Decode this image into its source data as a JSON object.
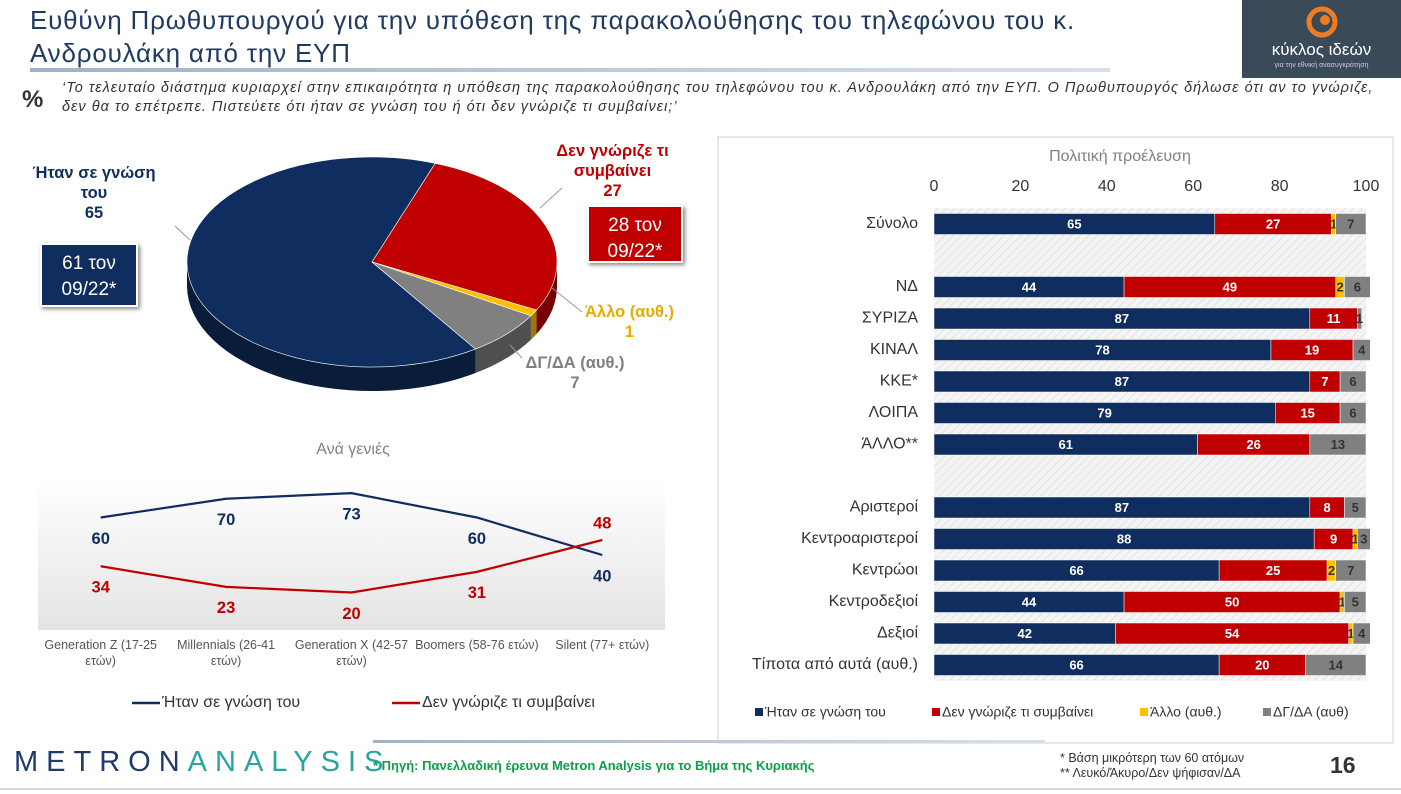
{
  "header": {
    "title": "Ευθύνη Πρωθυπουργού για την υπόθεση της παρακολούθησης του τηλεφώνου του κ. Ανδρουλάκη από την ΕΥΠ",
    "percent": "%",
    "question": "‘Το τελευταίο διάστημα κυριαρχεί στην επικαιρότητα η υπόθεση της παρακολούθησης του τηλεφώνου του κ. Ανδρουλάκη από την ΕΥΠ. Ο Πρωθυπουργός δήλωσε ότι αν το γνώριζε, δεν θα το επέτρεπε. Πιστεύετε ότι ήταν σε γνώση του ή ότι δεν γνώριζε τι συμβαίνει;’"
  },
  "logo": {
    "name": "κύκλος ιδεών",
    "tagline": "για την εθνική ανασυγκρότηση"
  },
  "chart_data": [
    {
      "type": "pie",
      "categories": [
        "Ήταν σε γνώση του",
        "Δεν γνώριζε τι συμβαίνει",
        "Άλλο (αυθ.)",
        "ΔΓ/ΔΑ (αυθ.)"
      ],
      "values": [
        65,
        27,
        1,
        7
      ],
      "colors": [
        "#0f2d5e",
        "#c00000",
        "#ffc000",
        "#808080"
      ],
      "annotations": [
        "61 τον 09/22*",
        "28 τον 09/22*"
      ]
    },
    {
      "type": "line",
      "title": "Ανά γενιές",
      "categories": [
        "Generation Z (17-25 ετών)",
        "Millennials (26-41 ετών)",
        "Generation X (42-57 ετών)",
        "Boomers (58-76 ετών)",
        "Silent (77+ ετών)"
      ],
      "ylim": [
        0,
        80
      ],
      "series": [
        {
          "name": "Ήταν σε γνώση του",
          "color": "#0f2d5e",
          "values": [
            60,
            70,
            73,
            60,
            40
          ]
        },
        {
          "name": "Δεν γνώριζε τι συμβαίνει",
          "color": "#c00000",
          "values": [
            34,
            23,
            20,
            31,
            48
          ]
        }
      ]
    },
    {
      "type": "bar",
      "orientation": "horizontal",
      "stacked": true,
      "title": "Πολιτική προέλευση",
      "xlim": [
        0,
        100
      ],
      "xticks": [
        0,
        20,
        40,
        60,
        80,
        100
      ],
      "categories": [
        "Σύνολο",
        null,
        "ΝΔ",
        "ΣΥΡΙΖΑ",
        "ΚΙΝΑΛ",
        "ΚΚΕ*",
        "ΛΟΙΠΑ",
        "ΆΛΛΟ**",
        null,
        "Αριστεροί",
        "Κεντροαριστεροί",
        "Κεντρώοι",
        "Κεντροδεξιοί",
        "Δεξιοί",
        "Τίποτα από αυτά (αυθ.)"
      ],
      "series": [
        {
          "name": "Ήταν σε γνώση του",
          "color": "#0f2d5e",
          "values": [
            65,
            null,
            44,
            87,
            78,
            87,
            79,
            61,
            null,
            87,
            88,
            66,
            44,
            42,
            66
          ]
        },
        {
          "name": "Δεν γνώριζε τι συμβαίνει",
          "color": "#c00000",
          "values": [
            27,
            null,
            49,
            11,
            19,
            7,
            15,
            26,
            null,
            8,
            9,
            25,
            50,
            54,
            20
          ]
        },
        {
          "name": "Άλλο (αυθ.)",
          "color": "#ffc000",
          "values": [
            1,
            null,
            2,
            null,
            null,
            null,
            null,
            null,
            null,
            null,
            1,
            2,
            1,
            1,
            null
          ]
        },
        {
          "name": "ΔΓ/ΔΑ (αυθ)",
          "color": "#808080",
          "values": [
            7,
            null,
            6,
            1,
            4,
            6,
            6,
            13,
            null,
            5,
            3,
            7,
            5,
            4,
            14
          ]
        }
      ]
    }
  ],
  "footer": {
    "brand_1": "METRON",
    "brand_2": "ANALYSIS",
    "source": "* Πηγή: Πανελλαδική έρευνα Metron Analysis για το Βήμα της Κυριακής",
    "notes": [
      "* Βάση μικρότερη των 60 ατόμων",
      "** Λευκό/Άκυρο/Δεν ψήφισαν/ΔΑ"
    ],
    "page": "16"
  }
}
